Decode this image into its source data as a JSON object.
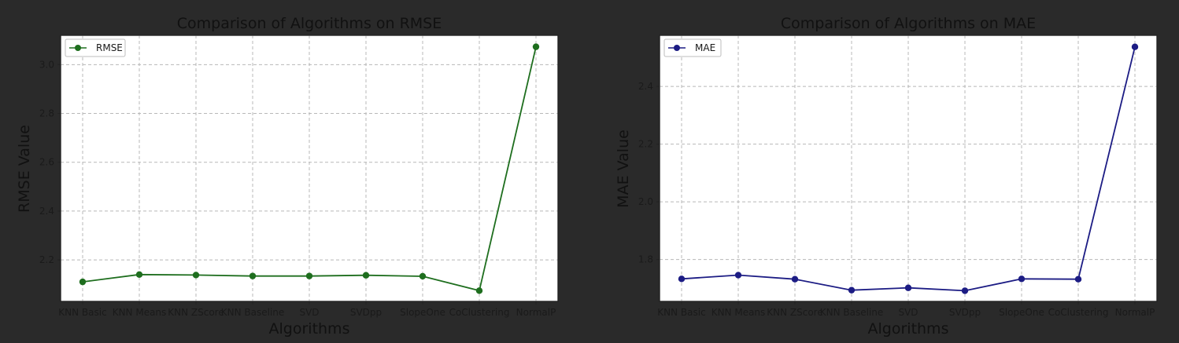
{
  "chart_data": [
    {
      "type": "line",
      "title": "Comparison of Algorithms on RMSE",
      "xlabel": "Algorithms",
      "ylabel": "RMSE Value",
      "categories": [
        "KNN Basic",
        "KNN Means",
        "KNN ZScore",
        "KNN Baseline",
        "SVD",
        "SVDpp",
        "SlopeOne",
        "CoClustering",
        "NormalP"
      ],
      "series": [
        {
          "name": "RMSE",
          "color": "#1e6e1e",
          "values": [
            2.11,
            2.14,
            2.138,
            2.134,
            2.134,
            2.137,
            2.133,
            2.074,
            3.073
          ]
        }
      ],
      "ylim": [
        2.03,
        3.12
      ],
      "yticks": [
        2.2,
        2.4,
        2.6,
        2.8,
        3.0
      ],
      "ytick_labels": [
        "2.2",
        "2.4",
        "2.6",
        "2.8",
        "3.0"
      ],
      "grid": true,
      "legend": "top-left"
    },
    {
      "type": "line",
      "title": "Comparison of Algorithms on MAE",
      "xlabel": "Algorithms",
      "ylabel": "MAE Value",
      "categories": [
        "KNN Basic",
        "KNN Means",
        "KNN ZScore",
        "KNN Baseline",
        "SVD",
        "SVDpp",
        "SlopeOne",
        "CoClustering",
        "NormalP"
      ],
      "series": [
        {
          "name": "MAE",
          "color": "#1c1c84",
          "values": [
            1.733,
            1.746,
            1.732,
            1.694,
            1.702,
            1.692,
            1.733,
            1.732,
            2.537
          ]
        }
      ],
      "ylim": [
        1.655,
        2.577
      ],
      "yticks": [
        1.8,
        2.0,
        2.2,
        2.4
      ],
      "ytick_labels": [
        "1.8",
        "2.0",
        "2.2",
        "2.4"
      ],
      "grid": true,
      "legend": "top-left"
    }
  ]
}
